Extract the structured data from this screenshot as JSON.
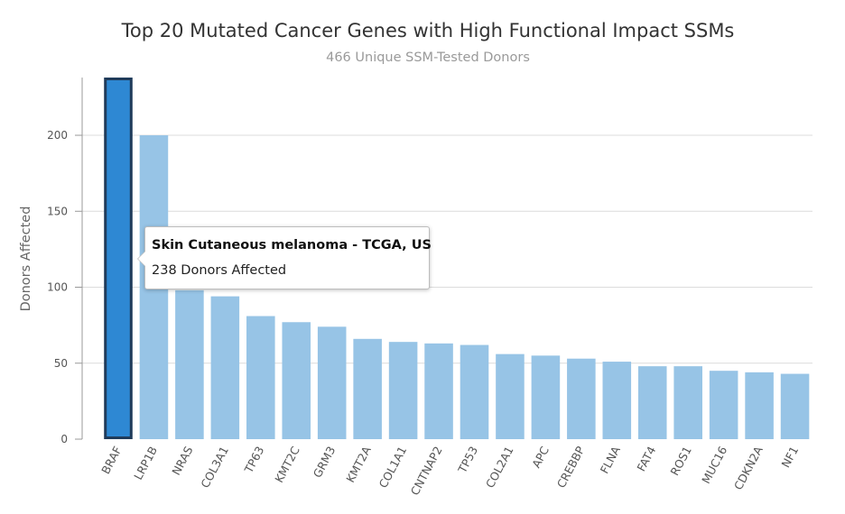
{
  "chart_data": {
    "type": "bar",
    "title": "Top 20 Mutated Cancer Genes with High Functional Impact SSMs",
    "subtitle": "466 Unique SSM-Tested Donors",
    "xlabel": "",
    "ylabel": "Donors Affected",
    "ylim": [
      0,
      238
    ],
    "yticks": [
      0,
      50,
      100,
      150,
      200
    ],
    "grid": true,
    "categories": [
      "BRAF",
      "LRP1B",
      "NRAS",
      "COL3A1",
      "TP63",
      "KMT2C",
      "GRM3",
      "KMT2A",
      "COL1A1",
      "CNTNAP2",
      "TP53",
      "COL2A1",
      "APC",
      "CREBBP",
      "FLNA",
      "FAT4",
      "ROS1",
      "MUC16",
      "CDKN2A",
      "NF1"
    ],
    "values": [
      238,
      200,
      98,
      94,
      81,
      77,
      74,
      66,
      64,
      63,
      62,
      56,
      55,
      53,
      51,
      48,
      48,
      45,
      44,
      43
    ],
    "highlighted_index": 0,
    "colors": {
      "bar": "#97c4e6",
      "bar_highlight": "#2e88d3",
      "bar_highlight_border": "#1f3b5a"
    }
  },
  "tooltip": {
    "title": "Skin Cutaneous melanoma - TCGA, US",
    "body": "238 Donors Affected"
  }
}
